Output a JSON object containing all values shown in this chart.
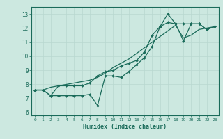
{
  "xlabel": "Humidex (Indice chaleur)",
  "bg_color": "#cce8e0",
  "grid_color": "#b8d8d0",
  "line_color": "#1a6b5a",
  "xlim": [
    -0.5,
    23.5
  ],
  "ylim": [
    5.8,
    13.5
  ],
  "xticks": [
    0,
    1,
    2,
    3,
    4,
    5,
    6,
    7,
    8,
    9,
    10,
    11,
    12,
    13,
    14,
    15,
    16,
    17,
    18,
    19,
    20,
    21,
    22,
    23
  ],
  "yticks": [
    6,
    7,
    8,
    9,
    10,
    11,
    12,
    13
  ],
  "line1_x": [
    0,
    1,
    2,
    3,
    4,
    5,
    6,
    7,
    8,
    9,
    10,
    11,
    12,
    13,
    14,
    15,
    16,
    17,
    18,
    19,
    20,
    21,
    22,
    23
  ],
  "line1_y": [
    7.6,
    7.6,
    7.2,
    7.2,
    7.2,
    7.2,
    7.2,
    7.3,
    6.5,
    8.6,
    8.6,
    8.5,
    8.9,
    9.4,
    9.9,
    10.7,
    12.1,
    13.0,
    12.3,
    11.1,
    12.3,
    12.3,
    11.9,
    12.1
  ],
  "line2_x": [
    0,
    1,
    2,
    3,
    4,
    5,
    6,
    7,
    8,
    9,
    10,
    11,
    12,
    13,
    14,
    15,
    16,
    17,
    18,
    19,
    20,
    21,
    22,
    23
  ],
  "line2_y": [
    7.6,
    7.6,
    7.8,
    7.9,
    8.0,
    8.1,
    8.2,
    8.3,
    8.5,
    8.8,
    9.2,
    9.5,
    9.8,
    10.2,
    10.6,
    11.0,
    11.4,
    11.8,
    12.2,
    11.3,
    11.5,
    11.9,
    12.0,
    12.1
  ],
  "line3_x": [
    0,
    1,
    2,
    3,
    4,
    5,
    6,
    7,
    8,
    9,
    10,
    11,
    12,
    13,
    14,
    15,
    16,
    17,
    18,
    19,
    20,
    21,
    22,
    23
  ],
  "line3_y": [
    7.6,
    7.6,
    7.2,
    7.9,
    7.9,
    7.9,
    7.9,
    8.1,
    8.6,
    8.9,
    9.0,
    9.3,
    9.5,
    9.7,
    10.3,
    11.5,
    12.1,
    12.4,
    12.3,
    12.3,
    12.3,
    12.3,
    11.9,
    12.1
  ]
}
